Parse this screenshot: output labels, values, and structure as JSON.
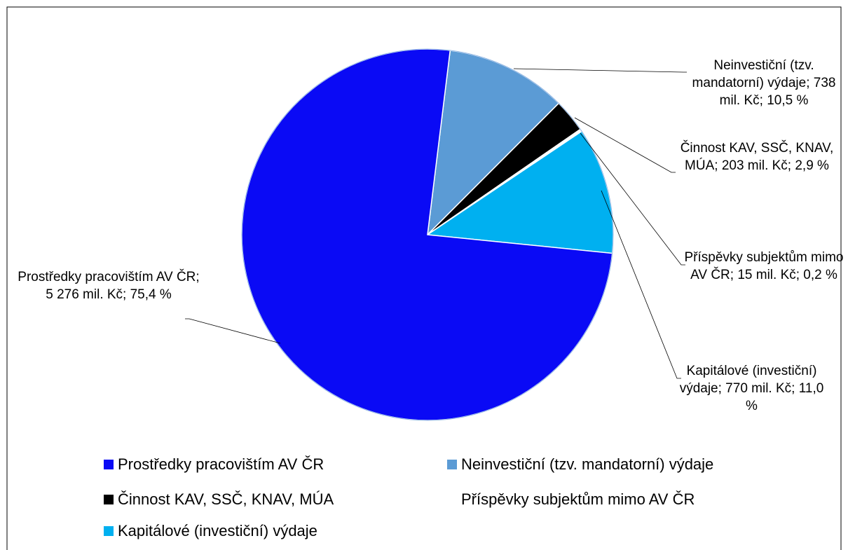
{
  "chart_data": {
    "type": "pie",
    "categories": [
      "Prostředky pracovištím AV ČR",
      "Neinvestiční (tzv. mandatorní) výdaje",
      "Činnost KAV, SSČ, KNAV, MÚA",
      "Příspěvky subjektům mimo AV ČR",
      "Kapitálové (investiční) výdaje"
    ],
    "values": [
      5276,
      738,
      203,
      15,
      770
    ],
    "value_labels": [
      "Prostředky pracovištím AV ČR; 5 276 mil. Kč; 75,4 %",
      "Neinvestiční (tzv. mandatorní) výdaje; 738 mil. Kč; 10,5 %",
      "Činnost KAV, SSČ, KNAV, MÚA; 203 mil. Kč; 2,9 %",
      "Příspěvky subjektům mimo AV ČR; 15 mil. Kč; 0,2 %",
      "Kapitálové (investiční) výdaje; 770 mil. Kč; 11,0 %"
    ],
    "colors": [
      "#0a0af5",
      "#5b9bd5",
      "#000000",
      "#ffffff",
      "#00b0f0"
    ],
    "legend": "bottom"
  }
}
